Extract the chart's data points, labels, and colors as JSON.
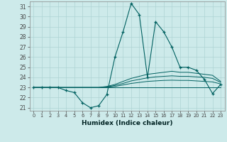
{
  "xlabel": "Humidex (Indice chaleur)",
  "background_color": "#cdeaea",
  "grid_color": "#aed4d4",
  "line_color": "#006060",
  "x": [
    0,
    1,
    2,
    3,
    4,
    5,
    6,
    7,
    8,
    9,
    10,
    11,
    12,
    13,
    14,
    15,
    16,
    17,
    18,
    19,
    20,
    21,
    22,
    23
  ],
  "y_main": [
    23.0,
    23.0,
    23.0,
    23.0,
    22.7,
    22.5,
    21.5,
    21.0,
    21.2,
    22.3,
    26.0,
    28.5,
    31.3,
    30.2,
    24.0,
    29.5,
    28.5,
    27.0,
    25.0,
    25.0,
    24.7,
    23.8,
    22.4,
    23.3
  ],
  "y_line2": [
    23.0,
    23.0,
    23.0,
    23.0,
    23.0,
    23.0,
    23.0,
    23.0,
    23.0,
    23.1,
    23.3,
    23.6,
    23.9,
    24.1,
    24.3,
    24.4,
    24.5,
    24.6,
    24.5,
    24.5,
    24.4,
    24.3,
    24.2,
    23.6
  ],
  "y_line3": [
    23.0,
    23.0,
    23.0,
    23.0,
    23.0,
    23.0,
    23.0,
    23.0,
    23.0,
    23.05,
    23.2,
    23.4,
    23.65,
    23.8,
    23.95,
    24.05,
    24.1,
    24.15,
    24.1,
    24.1,
    24.05,
    24.0,
    23.9,
    23.5
  ],
  "y_line4": [
    23.0,
    23.0,
    23.0,
    23.0,
    23.0,
    23.0,
    23.0,
    23.0,
    23.0,
    23.02,
    23.1,
    23.25,
    23.4,
    23.5,
    23.6,
    23.65,
    23.7,
    23.72,
    23.7,
    23.7,
    23.65,
    23.6,
    23.55,
    23.35
  ],
  "y_line5": [
    23.0,
    23.0,
    23.0,
    23.0,
    23.0,
    23.0,
    23.0,
    23.0,
    23.0,
    23.0,
    23.0,
    23.0,
    23.0,
    23.0,
    23.0,
    23.0,
    23.0,
    23.0,
    23.0,
    23.0,
    23.0,
    23.0,
    23.0,
    23.0
  ],
  "ylim_min": 21,
  "ylim_max": 31.5,
  "xlim_min": -0.5,
  "xlim_max": 23.5,
  "yticks": [
    21,
    22,
    23,
    24,
    25,
    26,
    27,
    28,
    29,
    30,
    31
  ],
  "xticks": [
    0,
    1,
    2,
    3,
    4,
    5,
    6,
    7,
    8,
    9,
    10,
    11,
    12,
    13,
    14,
    15,
    16,
    17,
    18,
    19,
    20,
    21,
    22,
    23
  ]
}
